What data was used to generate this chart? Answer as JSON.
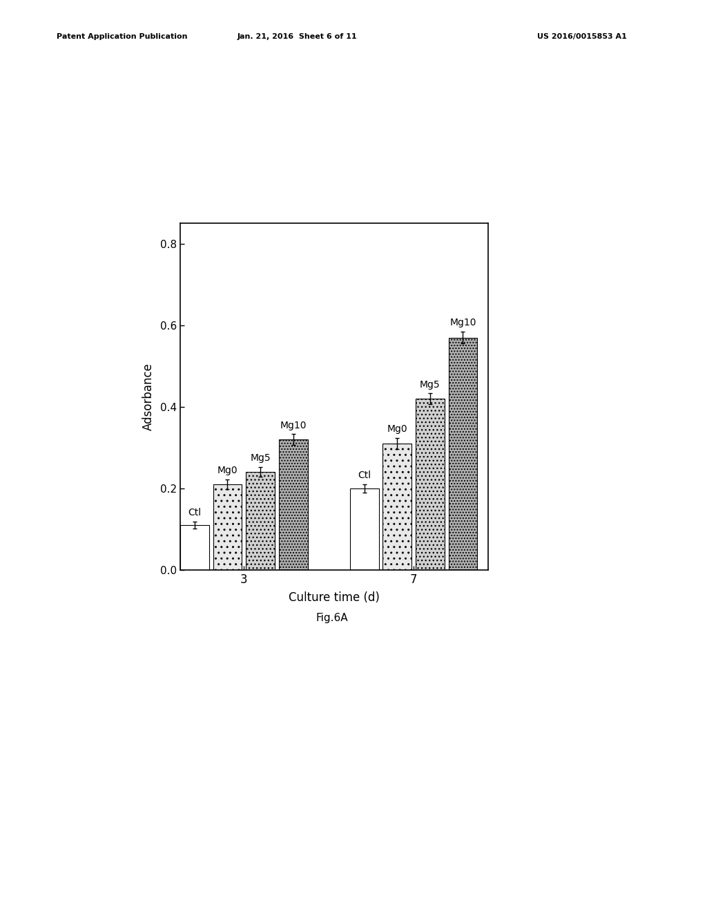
{
  "groups": [
    "3",
    "7"
  ],
  "series": [
    "Ctl",
    "Mg0",
    "Mg5",
    "Mg10"
  ],
  "values": {
    "3": [
      0.11,
      0.21,
      0.24,
      0.32
    ],
    "7": [
      0.2,
      0.31,
      0.42,
      0.57
    ]
  },
  "errors": {
    "3": [
      0.008,
      0.012,
      0.012,
      0.013
    ],
    "7": [
      0.01,
      0.013,
      0.013,
      0.015
    ]
  },
  "ylabel": "Adsorbance",
  "xlabel": "Culture time (d)",
  "ylim": [
    0.0,
    0.85
  ],
  "yticks": [
    0.0,
    0.2,
    0.4,
    0.6,
    0.8
  ],
  "ytick_labels": [
    "0.0",
    "0.2",
    "0.4",
    "0.6",
    "0.8"
  ],
  "caption": "Fig.6A",
  "bar_colors": [
    "#ffffff",
    "#e8e8e8",
    "#d0d0d0",
    "#b0b0b0"
  ],
  "bar_hatch": [
    null,
    "..",
    "...",
    "...."
  ],
  "background_color": "#ffffff",
  "label_fontsize": 12,
  "tick_fontsize": 11,
  "bar_label_fontsize": 10,
  "caption_fontsize": 11,
  "header_left": "Patent Application Publication",
  "header_mid": "Jan. 21, 2016  Sheet 6 of 11",
  "header_right": "US 2016/0015853 A1",
  "header_fontsize": 8,
  "group_positions": [
    0.3,
    1.1
  ],
  "bar_width": 0.155
}
